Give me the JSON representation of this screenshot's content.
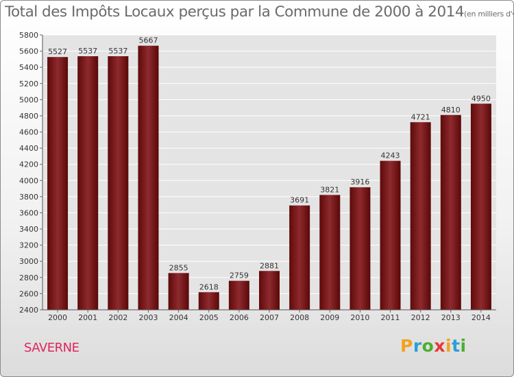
{
  "chart_data": {
    "type": "bar",
    "title": "Total des Impôts Locaux perçus par la Commune de 2000 à 2014",
    "unit_label": "(en milliers d'€)",
    "categories": [
      "2000",
      "2001",
      "2002",
      "2003",
      "2004",
      "2005",
      "2006",
      "2007",
      "2008",
      "2009",
      "2010",
      "2011",
      "2012",
      "2013",
      "2014"
    ],
    "values": [
      5527,
      5537,
      5537,
      5667,
      2855,
      2618,
      2759,
      2881,
      3691,
      3821,
      3916,
      4243,
      4721,
      4810,
      4950
    ],
    "ylim": [
      2400,
      5800
    ],
    "yticks": [
      2400,
      2600,
      2800,
      3000,
      3200,
      3400,
      3600,
      3800,
      4000,
      4200,
      4400,
      4600,
      4800,
      5000,
      5200,
      5400,
      5600,
      5800
    ],
    "grid": true,
    "bar_color": "#8b1a1a",
    "xlabel": "",
    "ylabel": ""
  },
  "commune": "SAVERNE",
  "logo": {
    "letters": [
      "P",
      "r",
      "o",
      "x",
      "i",
      "t",
      "i"
    ],
    "colors": [
      "#f4a21d",
      "#2a9fd6",
      "#4caf2e",
      "#e53935",
      "#f4a21d",
      "#2a9fd6",
      "#4caf2e"
    ]
  }
}
